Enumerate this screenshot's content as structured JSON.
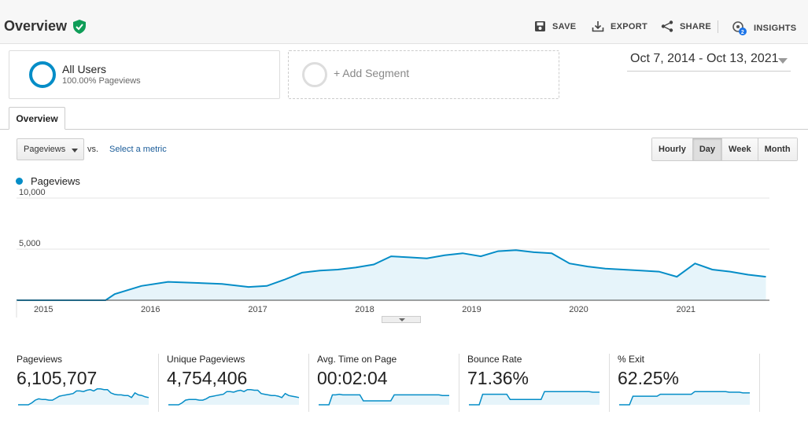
{
  "header": {
    "title": "Overview",
    "tools": [
      {
        "id": "save",
        "label": "SAVE",
        "icon": "save-icon"
      },
      {
        "id": "export",
        "label": "EXPORT",
        "icon": "export-icon"
      },
      {
        "id": "share",
        "label": "SHARE",
        "icon": "share-icon"
      },
      {
        "id": "insights",
        "label": "INSIGHTS",
        "icon": "insights-icon",
        "badge": "2"
      }
    ]
  },
  "segments": {
    "all_users": {
      "name": "All Users",
      "sub": "100.00% Pageviews"
    },
    "add_label": "+ Add Segment"
  },
  "date_range": "Oct 7, 2014 - Oct 13, 2021",
  "tab": "Overview",
  "controls": {
    "metric": "Pageviews",
    "vs": "vs.",
    "select_metric": "Select a metric",
    "granularity": [
      "Hourly",
      "Day",
      "Week",
      "Month"
    ],
    "active_granularity": "Day"
  },
  "legend": "Pageviews",
  "colors": {
    "series": "#058dc7",
    "fill": "#e6f4fa"
  },
  "chart_data": {
    "type": "area",
    "series": [
      {
        "name": "Pageviews"
      }
    ],
    "x": [
      "2014-10",
      "2015-01",
      "2015-06",
      "2015-08",
      "2015-09",
      "2015-12",
      "2016-03",
      "2016-06",
      "2016-09",
      "2016-12",
      "2017-02",
      "2017-04",
      "2017-06",
      "2017-08",
      "2017-10",
      "2017-12",
      "2018-02",
      "2018-04",
      "2018-06",
      "2018-08",
      "2018-10",
      "2018-12",
      "2019-02",
      "2019-04",
      "2019-06",
      "2019-08",
      "2019-10",
      "2019-12",
      "2020-02",
      "2020-04",
      "2020-06",
      "2020-08",
      "2020-10",
      "2020-12",
      "2021-02",
      "2021-04",
      "2021-06",
      "2021-08",
      "2021-10"
    ],
    "values": [
      0,
      0,
      0,
      0,
      600,
      1400,
      1800,
      1700,
      1600,
      1300,
      1400,
      2000,
      2700,
      2900,
      3000,
      3200,
      3500,
      4300,
      4200,
      4100,
      4400,
      4600,
      4300,
      4800,
      4900,
      4700,
      4600,
      3600,
      3300,
      3100,
      3000,
      2900,
      2800,
      2300,
      3600,
      3000,
      2800,
      2500,
      2300
    ],
    "ylim": [
      0,
      10000
    ],
    "yticks": [
      "10,000",
      "5,000"
    ],
    "xticks": [
      "2015",
      "2016",
      "2017",
      "2018",
      "2019",
      "2020",
      "2021"
    ],
    "grid": true
  },
  "scorecards": [
    {
      "label": "Pageviews",
      "value": "6,105,707",
      "spark": [
        0,
        0,
        0,
        0,
        3,
        7,
        9,
        8,
        8,
        7,
        7,
        10,
        13,
        14,
        15,
        16,
        17,
        21,
        21,
        20,
        22,
        23,
        21,
        24,
        24,
        23,
        23,
        18,
        16,
        15,
        15,
        14,
        14,
        11,
        18,
        15,
        14,
        12,
        11
      ]
    },
    {
      "label": "Unique Pageviews",
      "value": "4,754,406",
      "spark": [
        0,
        0,
        0,
        0,
        3,
        7,
        8,
        8,
        8,
        7,
        7,
        9,
        12,
        13,
        14,
        15,
        16,
        20,
        20,
        19,
        21,
        22,
        20,
        23,
        23,
        22,
        22,
        17,
        16,
        15,
        14,
        14,
        13,
        11,
        17,
        14,
        13,
        12,
        11
      ]
    },
    {
      "label": "Avg. Time on Page",
      "value": "00:02:04",
      "spark": [
        0,
        0,
        0,
        0,
        15,
        15,
        16,
        15,
        15,
        15,
        15,
        15,
        15,
        6,
        6,
        6,
        6,
        6,
        6,
        6,
        6,
        6,
        15,
        15,
        15,
        15,
        15,
        15,
        15,
        15,
        15,
        15,
        15,
        15,
        15,
        15,
        14,
        14,
        14
      ]
    },
    {
      "label": "Bounce Rate",
      "value": "71.36%",
      "spark": [
        0,
        0,
        0,
        0,
        16,
        16,
        16,
        16,
        16,
        16,
        16,
        16,
        8,
        8,
        8,
        8,
        8,
        8,
        8,
        8,
        8,
        8,
        20,
        20,
        20,
        20,
        20,
        20,
        20,
        20,
        20,
        20,
        20,
        20,
        20,
        20,
        19,
        19,
        19
      ]
    },
    {
      "label": "% Exit",
      "value": "62.25%",
      "spark": [
        0,
        0,
        0,
        0,
        13,
        13,
        13,
        13,
        13,
        13,
        13,
        13,
        16,
        16,
        16,
        16,
        16,
        16,
        16,
        16,
        16,
        16,
        20,
        20,
        20,
        20,
        20,
        20,
        20,
        20,
        20,
        20,
        19,
        19,
        19,
        19,
        18,
        18,
        18
      ]
    }
  ]
}
